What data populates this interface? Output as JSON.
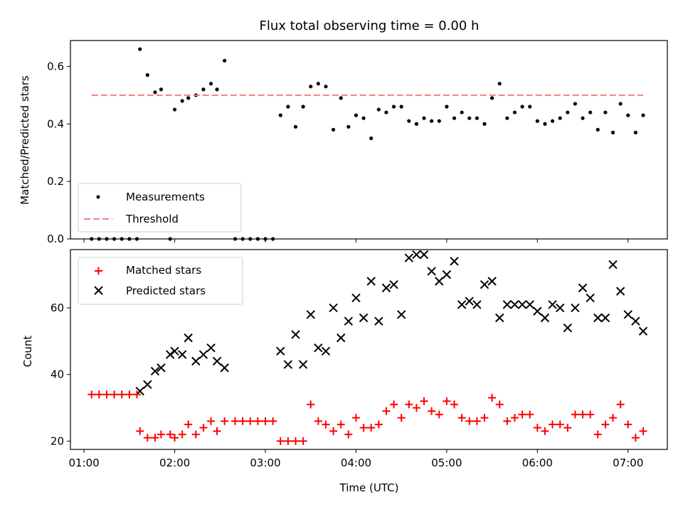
{
  "chart_data": [
    {
      "type": "scatter",
      "title": "Flux total observing time = 0.00 h",
      "xlabel": "",
      "ylabel": "Matched/Predicted stars",
      "ylim": [
        0,
        0.69
      ],
      "yticks": [
        0.0,
        0.2,
        0.4,
        0.6
      ],
      "ytick_labels": [
        "0.0",
        "0.2",
        "0.4",
        "0.6"
      ],
      "legend": {
        "placement": "lower-left",
        "entries": [
          "Measurements",
          "Threshold"
        ]
      },
      "colors": {
        "measurements": "#000000",
        "threshold": "#f08080"
      },
      "threshold": {
        "name": "Threshold",
        "value": 0.5,
        "x_start": "01:05",
        "x_end": "07:10"
      },
      "series": [
        {
          "name": "Measurements",
          "x": [
            "01:05",
            "01:10",
            "01:15",
            "01:20",
            "01:25",
            "01:30",
            "01:35",
            "01:37",
            "01:42",
            "01:47",
            "01:51",
            "01:57",
            "02:00",
            "02:05",
            "02:09",
            "02:14",
            "02:19",
            "02:24",
            "02:28",
            "02:33",
            "02:40",
            "02:45",
            "02:50",
            "02:55",
            "03:00",
            "03:05",
            "03:10",
            "03:15",
            "03:20",
            "03:25",
            "03:30",
            "03:35",
            "03:40",
            "03:45",
            "03:50",
            "03:55",
            "04:00",
            "04:05",
            "04:10",
            "04:15",
            "04:20",
            "04:25",
            "04:30",
            "04:35",
            "04:40",
            "04:45",
            "04:50",
            "04:55",
            "05:00",
            "05:05",
            "05:10",
            "05:15",
            "05:20",
            "05:25",
            "05:30",
            "05:35",
            "05:40",
            "05:45",
            "05:50",
            "05:55",
            "06:00",
            "06:05",
            "06:10",
            "06:15",
            "06:20",
            "06:25",
            "06:30",
            "06:35",
            "06:40",
            "06:45",
            "06:50",
            "06:55",
            "07:00",
            "07:05",
            "07:10"
          ],
          "y": [
            0.0,
            0.0,
            0.0,
            0.0,
            0.0,
            0.0,
            0.0,
            0.66,
            0.57,
            0.51,
            0.52,
            0.0,
            0.45,
            0.48,
            0.49,
            0.5,
            0.52,
            0.54,
            0.52,
            0.62,
            0.0,
            0.0,
            0.0,
            0.0,
            0.0,
            0.0,
            0.43,
            0.46,
            0.39,
            0.46,
            0.53,
            0.54,
            0.53,
            0.38,
            0.49,
            0.39,
            0.43,
            0.42,
            0.35,
            0.45,
            0.44,
            0.46,
            0.46,
            0.41,
            0.4,
            0.42,
            0.41,
            0.41,
            0.46,
            0.42,
            0.44,
            0.42,
            0.42,
            0.4,
            0.49,
            0.54,
            0.42,
            0.44,
            0.46,
            0.46,
            0.41,
            0.4,
            0.41,
            0.42,
            0.44,
            0.47,
            0.42,
            0.44,
            0.38,
            0.44,
            0.37,
            0.47,
            0.43,
            0.37,
            0.43
          ]
        }
      ]
    },
    {
      "type": "scatter",
      "title": "",
      "xlabel": "Time (UTC)",
      "ylabel": "Count",
      "ylim": [
        17.5,
        77.5
      ],
      "yticks": [
        20,
        40,
        60
      ],
      "ytick_labels": [
        "20",
        "40",
        "60"
      ],
      "xlim": [
        "00:51",
        "07:26"
      ],
      "xticks": [
        "01:00",
        "02:00",
        "03:00",
        "04:00",
        "05:00",
        "06:00",
        "07:00"
      ],
      "legend": {
        "placement": "upper-left",
        "entries": [
          "Matched stars",
          "Predicted stars"
        ]
      },
      "colors": {
        "matched": "#ff0000",
        "predicted": "#000000"
      },
      "series": [
        {
          "name": "Matched stars",
          "marker": "plus",
          "x": [
            "01:05",
            "01:10",
            "01:15",
            "01:20",
            "01:25",
            "01:30",
            "01:35",
            "01:37",
            "01:42",
            "01:47",
            "01:51",
            "01:57",
            "02:00",
            "02:05",
            "02:09",
            "02:14",
            "02:19",
            "02:24",
            "02:28",
            "02:33",
            "02:40",
            "02:45",
            "02:50",
            "02:55",
            "03:00",
            "03:05",
            "03:10",
            "03:15",
            "03:20",
            "03:25",
            "03:30",
            "03:35",
            "03:40",
            "03:45",
            "03:50",
            "03:55",
            "04:00",
            "04:05",
            "04:10",
            "04:15",
            "04:20",
            "04:25",
            "04:30",
            "04:35",
            "04:40",
            "04:45",
            "04:50",
            "04:55",
            "05:00",
            "05:05",
            "05:10",
            "05:15",
            "05:20",
            "05:25",
            "05:30",
            "05:35",
            "05:40",
            "05:45",
            "05:50",
            "05:55",
            "06:00",
            "06:05",
            "06:10",
            "06:15",
            "06:20",
            "06:25",
            "06:30",
            "06:35",
            "06:40",
            "06:45",
            "06:50",
            "06:55",
            "07:00",
            "07:05",
            "07:10"
          ],
          "y": [
            34,
            34,
            34,
            34,
            34,
            34,
            34,
            23,
            21,
            21,
            22,
            22,
            21,
            22,
            25,
            22,
            24,
            26,
            23,
            26,
            26,
            26,
            26,
            26,
            26,
            26,
            20,
            20,
            20,
            20,
            31,
            26,
            25,
            23,
            25,
            22,
            27,
            24,
            24,
            25,
            29,
            31,
            27,
            31,
            30,
            32,
            29,
            28,
            32,
            31,
            27,
            26,
            26,
            27,
            33,
            31,
            26,
            27,
            28,
            28,
            24,
            23,
            25,
            25,
            24,
            28,
            28,
            28,
            22,
            25,
            27,
            31,
            25,
            21,
            23
          ]
        },
        {
          "name": "Predicted stars",
          "marker": "x",
          "x": [
            "01:37",
            "01:42",
            "01:47",
            "01:51",
            "01:57",
            "02:00",
            "02:05",
            "02:09",
            "02:14",
            "02:19",
            "02:24",
            "02:28",
            "02:33",
            "03:10",
            "03:15",
            "03:20",
            "03:25",
            "03:30",
            "03:35",
            "03:40",
            "03:45",
            "03:50",
            "03:55",
            "04:00",
            "04:05",
            "04:10",
            "04:15",
            "04:20",
            "04:25",
            "04:30",
            "04:35",
            "04:40",
            "04:45",
            "04:50",
            "04:55",
            "05:00",
            "05:05",
            "05:10",
            "05:15",
            "05:20",
            "05:25",
            "05:30",
            "05:35",
            "05:40",
            "05:45",
            "05:50",
            "05:55",
            "06:00",
            "06:05",
            "06:10",
            "06:15",
            "06:20",
            "06:25",
            "06:30",
            "06:35",
            "06:40",
            "06:45",
            "06:50",
            "06:55",
            "07:00",
            "07:05",
            "07:10"
          ],
          "y": [
            35,
            37,
            41,
            42,
            46,
            47,
            46,
            51,
            44,
            46,
            48,
            44,
            42,
            47,
            43,
            52,
            43,
            58,
            48,
            47,
            60,
            51,
            56,
            63,
            57,
            68,
            56,
            66,
            67,
            58,
            75,
            76,
            76,
            71,
            68,
            70,
            74,
            61,
            62,
            61,
            67,
            68,
            57,
            61,
            61,
            61,
            61,
            59,
            57,
            61,
            60,
            54,
            60,
            66,
            63,
            57,
            57,
            73,
            65,
            58,
            56,
            53
          ]
        }
      ]
    }
  ]
}
